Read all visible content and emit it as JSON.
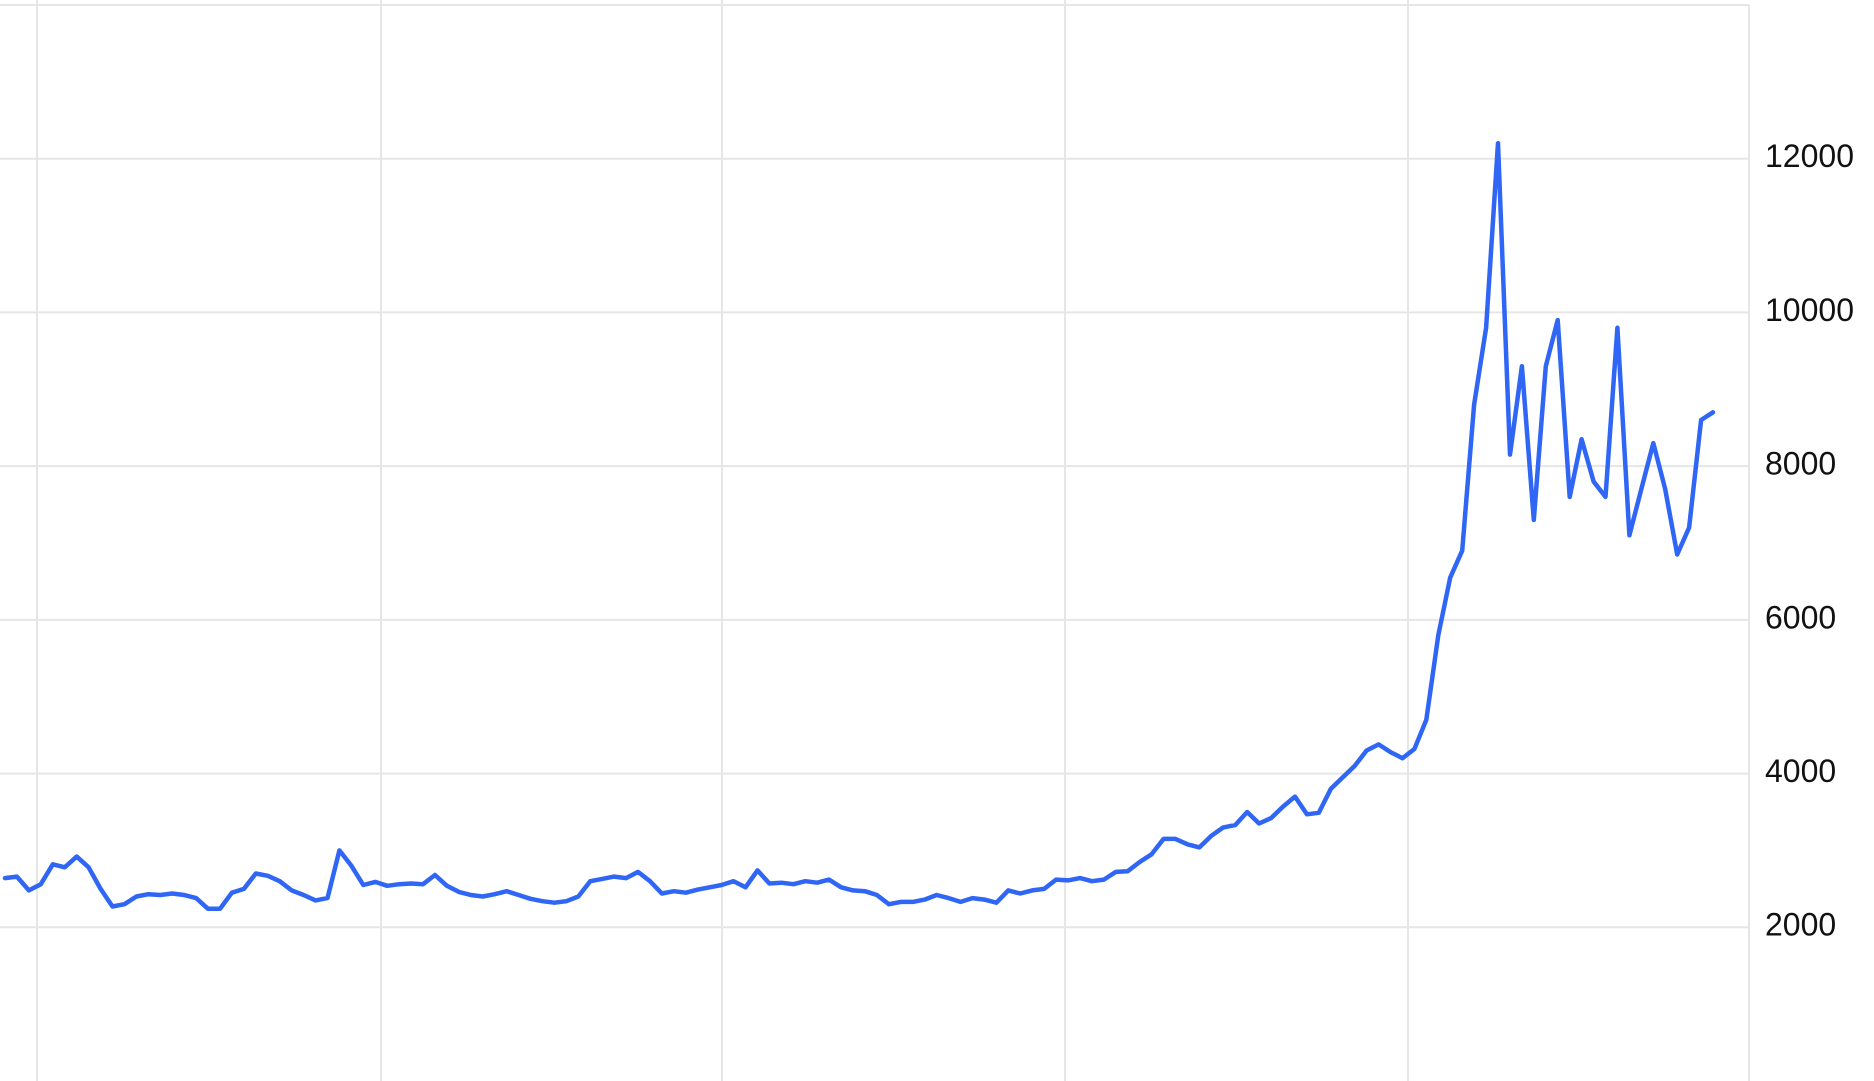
{
  "chart_data": {
    "type": "line",
    "series": [
      {
        "color": "#2f66f5",
        "values": [
          2640,
          2660,
          2480,
          2560,
          2820,
          2780,
          2920,
          2780,
          2500,
          2270,
          2300,
          2400,
          2430,
          2420,
          2440,
          2420,
          2380,
          2240,
          2240,
          2450,
          2500,
          2700,
          2670,
          2600,
          2480,
          2420,
          2350,
          2380,
          3000,
          2800,
          2550,
          2590,
          2540,
          2560,
          2570,
          2560,
          2680,
          2540,
          2460,
          2420,
          2400,
          2430,
          2470,
          2420,
          2370,
          2340,
          2320,
          2340,
          2400,
          2600,
          2630,
          2660,
          2640,
          2720,
          2600,
          2440,
          2470,
          2450,
          2490,
          2520,
          2550,
          2600,
          2520,
          2740,
          2570,
          2580,
          2560,
          2600,
          2580,
          2620,
          2520,
          2480,
          2470,
          2420,
          2300,
          2330,
          2330,
          2360,
          2420,
          2380,
          2330,
          2380,
          2360,
          2320,
          2480,
          2440,
          2480,
          2500,
          2620,
          2610,
          2640,
          2600,
          2620,
          2720,
          2730,
          2850,
          2950,
          3150,
          3150,
          3080,
          3040,
          3190,
          3300,
          3330,
          3500,
          3350,
          3420,
          3570,
          3700,
          3470,
          3490,
          3800,
          3950,
          4100,
          4300,
          4380,
          4280,
          4200,
          4320,
          4700,
          5800,
          6550,
          6900,
          8800,
          9800,
          12200,
          8150,
          9300,
          7300,
          9300,
          9900,
          7600,
          8350,
          7800,
          7600,
          9800,
          7100,
          7700,
          8300,
          7700,
          6850,
          7200,
          8600,
          8700
        ]
      }
    ],
    "ylim": [
      0,
      14000
    ],
    "yticks": [
      2000,
      4000,
      6000,
      8000,
      10000,
      12000
    ],
    "grid": true
  }
}
